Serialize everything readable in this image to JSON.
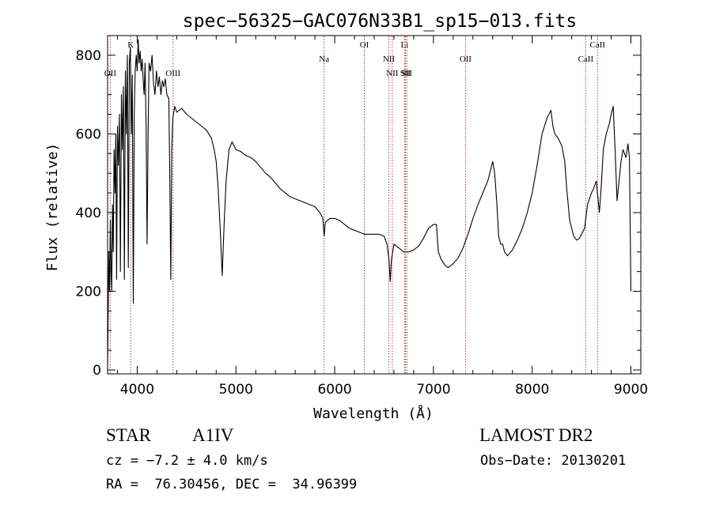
{
  "chart_data": {
    "type": "line",
    "title": "spec−56325−GAC076N33B1_sp15−013.fits",
    "xlabel": "Wavelength (Å)",
    "ylabel": "Flux (relative)",
    "xlim": [
      3700,
      9100
    ],
    "ylim": [
      -10,
      850
    ],
    "x_ticks": [
      4000,
      5000,
      6000,
      7000,
      8000,
      9000
    ],
    "y_ticks": [
      0,
      200,
      400,
      600,
      800
    ],
    "grid": false,
    "series": [
      {
        "color": "#000000",
        "points": [
          [
            3700,
            0
          ],
          [
            3705,
            120
          ],
          [
            3712,
            300
          ],
          [
            3720,
            200
          ],
          [
            3728,
            380
          ],
          [
            3735,
            250
          ],
          [
            3742,
            200
          ],
          [
            3750,
            420
          ],
          [
            3758,
            300
          ],
          [
            3766,
            560
          ],
          [
            3775,
            450
          ],
          [
            3783,
            600
          ],
          [
            3791,
            230
          ],
          [
            3800,
            620
          ],
          [
            3810,
            520
          ],
          [
            3820,
            650
          ],
          [
            3830,
            250
          ],
          [
            3840,
            700
          ],
          [
            3850,
            560
          ],
          [
            3860,
            720
          ],
          [
            3870,
            230
          ],
          [
            3880,
            760
          ],
          [
            3890,
            600
          ],
          [
            3900,
            800
          ],
          [
            3910,
            260
          ],
          [
            3920,
            780
          ],
          [
            3930,
            820
          ],
          [
            3940,
            600
          ],
          [
            3950,
            750
          ],
          [
            3960,
            170
          ],
          [
            3970,
            650
          ],
          [
            3980,
            760
          ],
          [
            3990,
            800
          ],
          [
            4000,
            760
          ],
          [
            4010,
            840
          ],
          [
            4020,
            780
          ],
          [
            4030,
            810
          ],
          [
            4040,
            760
          ],
          [
            4050,
            790
          ],
          [
            4060,
            740
          ],
          [
            4070,
            700
          ],
          [
            4080,
            780
          ],
          [
            4090,
            620
          ],
          [
            4100,
            320
          ],
          [
            4110,
            600
          ],
          [
            4120,
            780
          ],
          [
            4135,
            760
          ],
          [
            4150,
            800
          ],
          [
            4165,
            730
          ],
          [
            4180,
            700
          ],
          [
            4195,
            760
          ],
          [
            4210,
            720
          ],
          [
            4225,
            745
          ],
          [
            4240,
            700
          ],
          [
            4255,
            735
          ],
          [
            4270,
            720
          ],
          [
            4285,
            740
          ],
          [
            4300,
            700
          ],
          [
            4320,
            690
          ],
          [
            4330,
            500
          ],
          [
            4340,
            230
          ],
          [
            4350,
            560
          ],
          [
            4360,
            640
          ],
          [
            4380,
            670
          ],
          [
            4400,
            655
          ],
          [
            4450,
            665
          ],
          [
            4500,
            650
          ],
          [
            4550,
            640
          ],
          [
            4600,
            630
          ],
          [
            4650,
            620
          ],
          [
            4700,
            610
          ],
          [
            4750,
            590
          ],
          [
            4780,
            560
          ],
          [
            4800,
            530
          ],
          [
            4820,
            460
          ],
          [
            4840,
            360
          ],
          [
            4861,
            240
          ],
          [
            4880,
            370
          ],
          [
            4900,
            480
          ],
          [
            4930,
            560
          ],
          [
            4960,
            580
          ],
          [
            5000,
            560
          ],
          [
            5050,
            555
          ],
          [
            5100,
            545
          ],
          [
            5150,
            540
          ],
          [
            5200,
            530
          ],
          [
            5250,
            515
          ],
          [
            5300,
            500
          ],
          [
            5350,
            490
          ],
          [
            5400,
            475
          ],
          [
            5450,
            460
          ],
          [
            5500,
            450
          ],
          [
            5550,
            440
          ],
          [
            5600,
            435
          ],
          [
            5650,
            430
          ],
          [
            5700,
            425
          ],
          [
            5750,
            420
          ],
          [
            5800,
            415
          ],
          [
            5850,
            400
          ],
          [
            5880,
            385
          ],
          [
            5893,
            340
          ],
          [
            5905,
            375
          ],
          [
            5950,
            385
          ],
          [
            6000,
            385
          ],
          [
            6050,
            380
          ],
          [
            6100,
            370
          ],
          [
            6150,
            360
          ],
          [
            6200,
            355
          ],
          [
            6250,
            350
          ],
          [
            6300,
            345
          ],
          [
            6350,
            345
          ],
          [
            6400,
            345
          ],
          [
            6450,
            345
          ],
          [
            6500,
            340
          ],
          [
            6530,
            320
          ],
          [
            6550,
            280
          ],
          [
            6563,
            225
          ],
          [
            6575,
            280
          ],
          [
            6600,
            320
          ],
          [
            6650,
            310
          ],
          [
            6700,
            300
          ],
          [
            6750,
            300
          ],
          [
            6800,
            305
          ],
          [
            6850,
            315
          ],
          [
            6900,
            335
          ],
          [
            6950,
            360
          ],
          [
            7000,
            370
          ],
          [
            7030,
            370
          ],
          [
            7050,
            300
          ],
          [
            7080,
            280
          ],
          [
            7120,
            265
          ],
          [
            7150,
            260
          ],
          [
            7200,
            270
          ],
          [
            7250,
            285
          ],
          [
            7300,
            310
          ],
          [
            7350,
            345
          ],
          [
            7400,
            385
          ],
          [
            7450,
            420
          ],
          [
            7500,
            450
          ],
          [
            7550,
            480
          ],
          [
            7580,
            510
          ],
          [
            7600,
            530
          ],
          [
            7620,
            500
          ],
          [
            7640,
            430
          ],
          [
            7660,
            340
          ],
          [
            7680,
            320
          ],
          [
            7700,
            320
          ],
          [
            7720,
            300
          ],
          [
            7750,
            290
          ],
          [
            7800,
            305
          ],
          [
            7850,
            330
          ],
          [
            7900,
            360
          ],
          [
            7950,
            400
          ],
          [
            8000,
            450
          ],
          [
            8050,
            520
          ],
          [
            8100,
            600
          ],
          [
            8150,
            640
          ],
          [
            8190,
            660
          ],
          [
            8210,
            620
          ],
          [
            8230,
            600
          ],
          [
            8260,
            590
          ],
          [
            8300,
            570
          ],
          [
            8330,
            530
          ],
          [
            8350,
            460
          ],
          [
            8380,
            380
          ],
          [
            8420,
            340
          ],
          [
            8450,
            330
          ],
          [
            8480,
            335
          ],
          [
            8500,
            345
          ],
          [
            8530,
            360
          ],
          [
            8560,
            420
          ],
          [
            8600,
            450
          ],
          [
            8620,
            460
          ],
          [
            8650,
            480
          ],
          [
            8680,
            400
          ],
          [
            8700,
            470
          ],
          [
            8720,
            560
          ],
          [
            8750,
            600
          ],
          [
            8780,
            625
          ],
          [
            8800,
            650
          ],
          [
            8820,
            670
          ],
          [
            8840,
            560
          ],
          [
            8860,
            430
          ],
          [
            8880,
            480
          ],
          [
            8900,
            530
          ],
          [
            8920,
            560
          ],
          [
            8950,
            540
          ],
          [
            8970,
            575
          ],
          [
            8985,
            540
          ],
          [
            9000,
            200
          ]
        ]
      }
    ],
    "line_markers": [
      {
        "label": "OII",
        "x": 3727,
        "row": 2
      },
      {
        "label": "K",
        "x": 3934,
        "row": 0
      },
      {
        "label": "OIII",
        "x": 4363,
        "row": 2
      },
      {
        "label": "Na",
        "x": 5893,
        "row": 1
      },
      {
        "label": "OI",
        "x": 6300,
        "row": 0
      },
      {
        "label": "NII",
        "x": 6548,
        "row": 1
      },
      {
        "label": "NII",
        "x": 6583,
        "row": 2
      },
      {
        "label": "Li",
        "x": 6708,
        "row": 0
      },
      {
        "label": "SII",
        "x": 6716,
        "row": 2
      },
      {
        "label": "SII",
        "x": 6731,
        "row": 2
      },
      {
        "label": "OII",
        "x": 7325,
        "row": 1
      },
      {
        "label": "CaII",
        "x": 8542,
        "row": 1
      },
      {
        "label": "CaII",
        "x": 8662,
        "row": 0
      }
    ],
    "marker_color": "#8b1a1a"
  },
  "info": {
    "class_label": "STAR",
    "subclass": "A1IV",
    "survey": "LAMOST DR2",
    "cz": "cz = −7.2 ± 4.0 km/s",
    "obs_date": "Obs−Date: 20130201",
    "coords": "RA =  76.30456, DEC =  34.96399"
  }
}
